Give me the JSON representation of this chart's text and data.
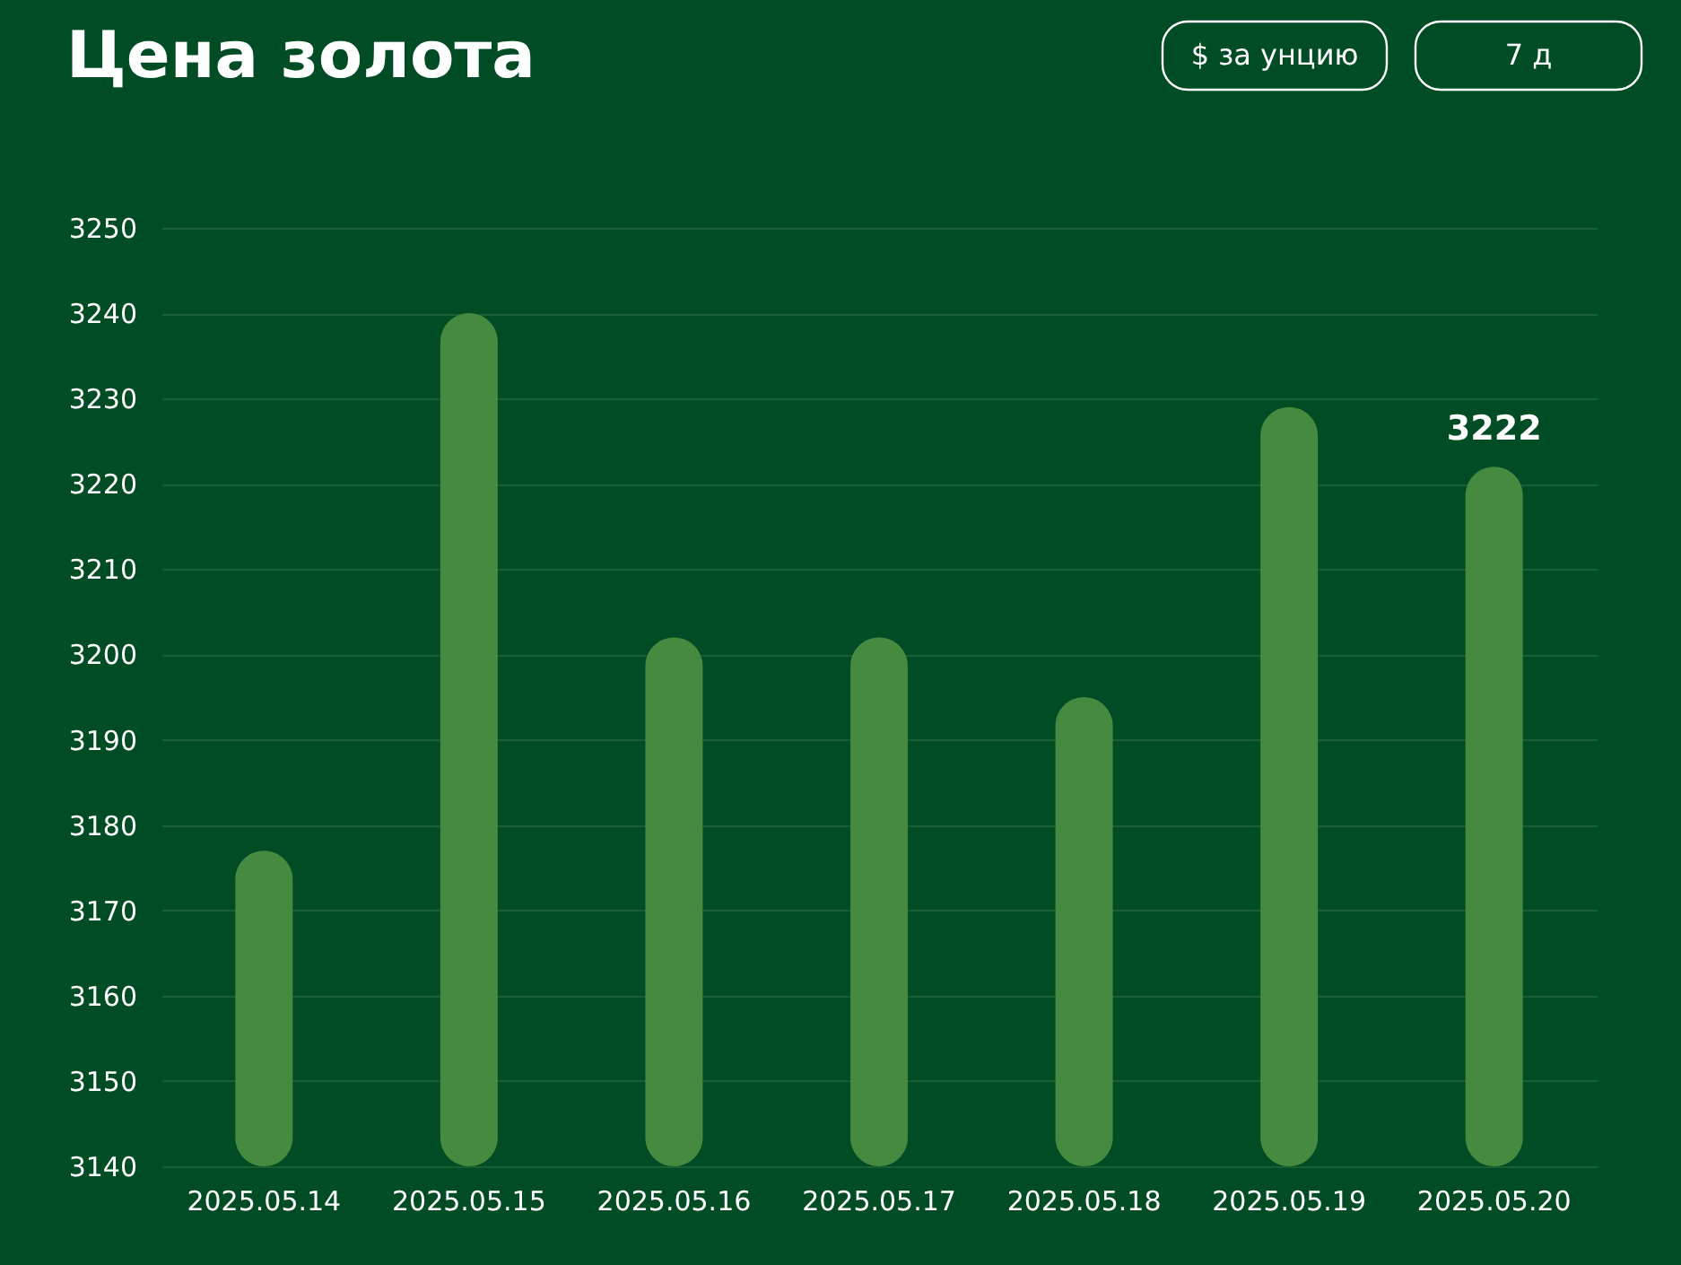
{
  "chart_data": {
    "type": "bar",
    "title": "Цена золота",
    "annotations": [
      "$ за унцию",
      "7 д"
    ],
    "categories": [
      "2025.05.14",
      "2025.05.15",
      "2025.05.16",
      "2025.05.17",
      "2025.05.18",
      "2025.05.19",
      "2025.05.20"
    ],
    "values": [
      3177,
      3240,
      3202,
      3202,
      3195,
      3229,
      3222
    ],
    "value_labels": [
      null,
      null,
      null,
      null,
      null,
      null,
      "3222"
    ],
    "color": "#468a3f",
    "ylim": [
      3140,
      3250
    ],
    "yticks": [
      3140,
      3150,
      3160,
      3170,
      3180,
      3190,
      3200,
      3210,
      3220,
      3230,
      3240,
      3250
    ],
    "grid": "y"
  }
}
